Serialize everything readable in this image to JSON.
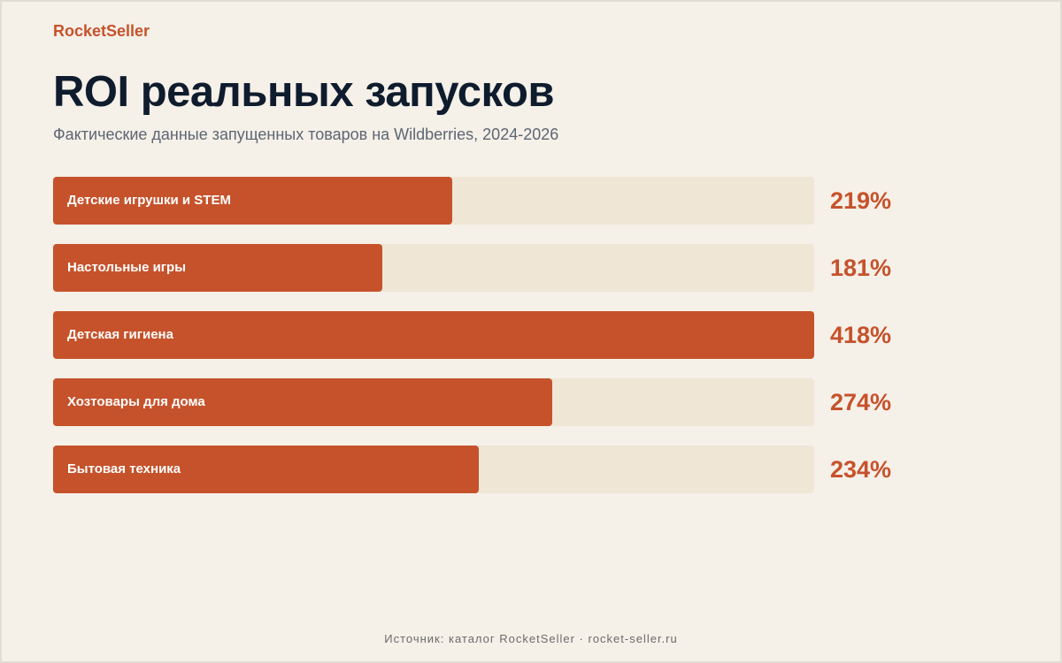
{
  "brand": "RocketSeller",
  "title": "ROI реальных запусков",
  "subtitle": "Фактические данные запущенных товаров на Wildberries, 2024-2026",
  "footer": "Источник: каталог RocketSeller · rocket-seller.ru",
  "colors": {
    "accent": "#c6522b",
    "track": "#efe6d6",
    "background": "#f5f0e8",
    "title": "#0f1c2e"
  },
  "chart_data": {
    "type": "bar",
    "orientation": "horizontal",
    "categories": [
      "Детские игрушки и STEM",
      "Настольные игры",
      "Детская гигиена",
      "Хозтовары для дома",
      "Бытовая техника"
    ],
    "values": [
      219,
      181,
      418,
      274,
      234
    ],
    "value_labels": [
      "219%",
      "181%",
      "418%",
      "274%",
      "234%"
    ],
    "unit": "%",
    "xlim": [
      0,
      418
    ],
    "grid": false,
    "legend": "none"
  }
}
